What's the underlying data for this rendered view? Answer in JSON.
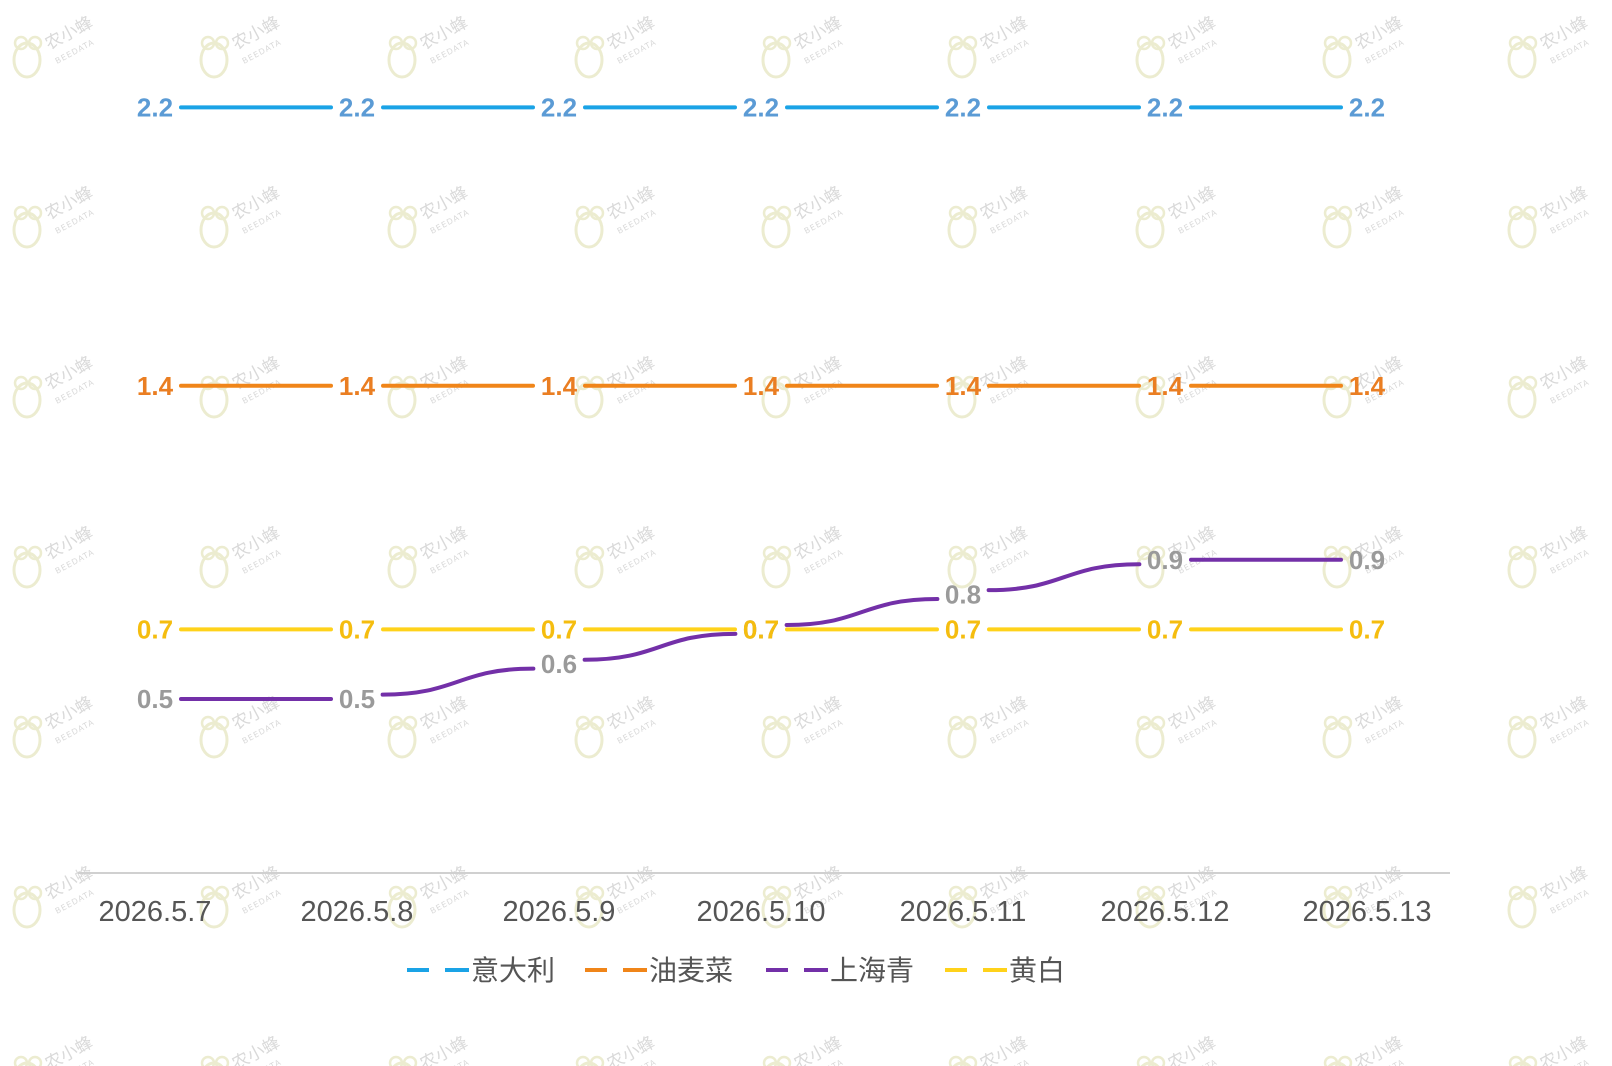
{
  "watermark": {
    "name": "农小蜂",
    "sub": "BEEDATA",
    "icon": "bee-icon"
  },
  "chart_data": {
    "type": "line",
    "x": [
      "2026.5.7",
      "2026.5.8",
      "2026.5.9",
      "2026.5.10",
      "2026.5.11",
      "2026.5.12",
      "2026.5.13"
    ],
    "series": [
      {
        "name": "意大利",
        "values": [
          2.2,
          2.2,
          2.2,
          2.2,
          2.2,
          2.2,
          2.2
        ],
        "color": "#1aa3e6",
        "label_color": "#5b9bd5"
      },
      {
        "name": "油麦菜",
        "values": [
          1.4,
          1.4,
          1.4,
          1.4,
          1.4,
          1.4,
          1.4
        ],
        "color": "#f08519",
        "label_color": "#ea7e22"
      },
      {
        "name": "上海青",
        "values": [
          0.5,
          0.5,
          0.6,
          0.7,
          0.8,
          0.9,
          0.9
        ],
        "color": "#7330a8",
        "label_color": "#9a9a9a"
      },
      {
        "name": "黄白",
        "values": [
          0.7,
          0.7,
          0.7,
          0.7,
          0.7,
          0.7,
          0.7
        ],
        "color": "#ffd21a",
        "label_color": "#f5bd0f"
      }
    ],
    "ylim": [
      0,
      2.4
    ],
    "title": "",
    "xlabel": "",
    "ylabel": "",
    "grid": false,
    "legend_position": "bottom-center",
    "axis_color": "#d0d0d0"
  }
}
